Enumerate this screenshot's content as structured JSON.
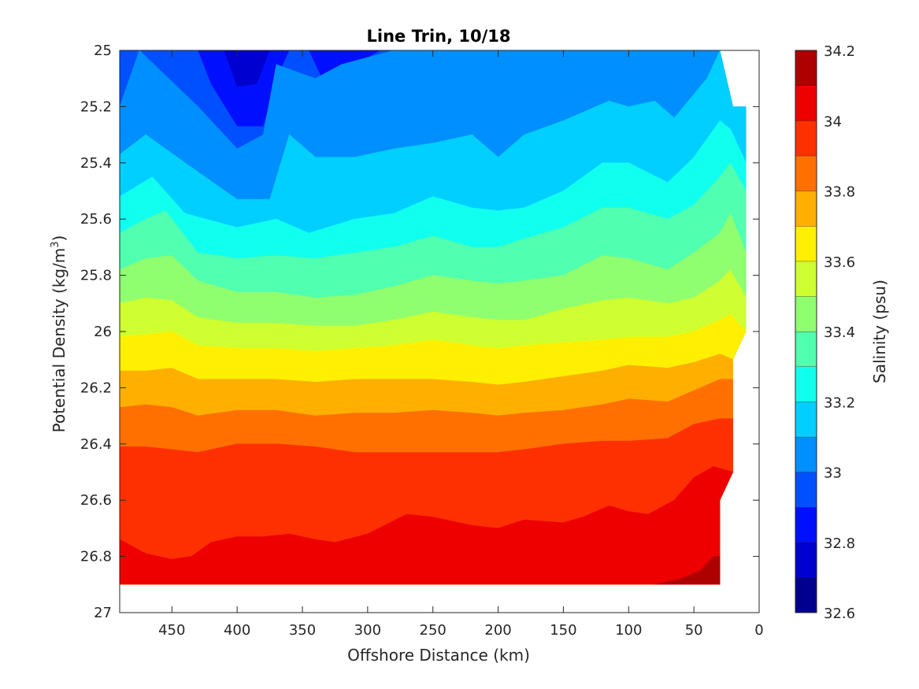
{
  "chart_data": {
    "type": "contourf",
    "title": "Line Trin, 10/18",
    "xlabel": "Offshore Distance (km)",
    "ylabel": "Potential Density (kg/m3)",
    "ylabel_parts": {
      "main": "Potential Density (kg/m",
      "sup": "3",
      "close": ")"
    },
    "colorbar_label": "Salinity (psu)",
    "x_reversed": true,
    "y_reversed": true,
    "xlim": [
      490,
      0
    ],
    "ylim": [
      25,
      27
    ],
    "data_extent": {
      "x": [
        490,
        10
      ],
      "y": [
        25,
        26.9
      ]
    },
    "xticks": [
      450,
      400,
      350,
      300,
      250,
      200,
      150,
      100,
      50,
      0
    ],
    "yticks": [
      25,
      25.2,
      25.4,
      25.6,
      25.8,
      26,
      26.2,
      26.4,
      26.6,
      26.8,
      27
    ],
    "ytick_labels": [
      "25",
      "25.2",
      "25.4",
      "25.6",
      "25.8",
      "26",
      "26.2",
      "26.4",
      "26.6",
      "26.8",
      "27"
    ],
    "colorbar": {
      "range": [
        32.6,
        34.2
      ],
      "levels": [
        32.6,
        32.7,
        32.8,
        32.9,
        33.0,
        33.1,
        33.2,
        33.3,
        33.4,
        33.5,
        33.6,
        33.7,
        33.8,
        33.9,
        34.0,
        34.1,
        34.2
      ],
      "ticks": [
        32.6,
        32.8,
        33,
        33.2,
        33.4,
        33.6,
        33.8,
        34,
        34.2
      ],
      "tick_labels": [
        "32.6",
        "32.8",
        "33",
        "33.2",
        "33.4",
        "33.6",
        "33.8",
        "34",
        "34.2"
      ],
      "colors": [
        "#00008f",
        "#0000cf",
        "#0010ff",
        "#0050ff",
        "#008fff",
        "#00cfff",
        "#10ffef",
        "#50ffaf",
        "#8fff70",
        "#cfff30",
        "#ffef00",
        "#ffaf00",
        "#ff7000",
        "#ff3000",
        "#ef0000",
        "#af0000"
      ]
    },
    "isolines": [
      {
        "level": 33.0,
        "points": [
          [
            490,
            25.2
          ],
          [
            475,
            25.0
          ],
          [
            430,
            25.2
          ],
          [
            400,
            25.35
          ],
          [
            380,
            25.3
          ],
          [
            370,
            25.05
          ],
          [
            340,
            25.1
          ],
          [
            320,
            25.05
          ],
          [
            280,
            25.0
          ],
          [
            30,
            25.0
          ]
        ]
      },
      {
        "level": 33.1,
        "points": [
          [
            490,
            25.37
          ],
          [
            470,
            25.3
          ],
          [
            440,
            25.4
          ],
          [
            400,
            25.53
          ],
          [
            375,
            25.53
          ],
          [
            360,
            25.3
          ],
          [
            340,
            25.38
          ],
          [
            310,
            25.38
          ],
          [
            280,
            25.35
          ],
          [
            250,
            25.33
          ],
          [
            220,
            25.3
          ],
          [
            200,
            25.38
          ],
          [
            180,
            25.3
          ],
          [
            150,
            25.25
          ],
          [
            135,
            25.22
          ],
          [
            115,
            25.18
          ],
          [
            100,
            25.2
          ],
          [
            80,
            25.18
          ],
          [
            65,
            25.24
          ],
          [
            40,
            25.1
          ],
          [
            30,
            25.0
          ],
          [
            25,
            25.1
          ],
          [
            17,
            25.2
          ]
        ]
      },
      {
        "level": 33.2,
        "points": [
          [
            490,
            25.52
          ],
          [
            465,
            25.45
          ],
          [
            440,
            25.58
          ],
          [
            400,
            25.63
          ],
          [
            370,
            25.6
          ],
          [
            345,
            25.65
          ],
          [
            310,
            25.6
          ],
          [
            280,
            25.58
          ],
          [
            250,
            25.52
          ],
          [
            220,
            25.56
          ],
          [
            200,
            25.57
          ],
          [
            180,
            25.56
          ],
          [
            150,
            25.5
          ],
          [
            120,
            25.4
          ],
          [
            100,
            25.4
          ],
          [
            70,
            25.47
          ],
          [
            50,
            25.38
          ],
          [
            30,
            25.25
          ],
          [
            22,
            25.28
          ],
          [
            10,
            25.4
          ]
        ]
      },
      {
        "level": 33.3,
        "points": [
          [
            490,
            25.65
          ],
          [
            470,
            25.6
          ],
          [
            455,
            25.57
          ],
          [
            430,
            25.72
          ],
          [
            400,
            25.74
          ],
          [
            370,
            25.73
          ],
          [
            340,
            25.74
          ],
          [
            310,
            25.72
          ],
          [
            280,
            25.7
          ],
          [
            250,
            25.66
          ],
          [
            220,
            25.7
          ],
          [
            200,
            25.7
          ],
          [
            180,
            25.67
          ],
          [
            150,
            25.63
          ],
          [
            120,
            25.56
          ],
          [
            100,
            25.56
          ],
          [
            70,
            25.6
          ],
          [
            50,
            25.55
          ],
          [
            30,
            25.45
          ],
          [
            22,
            25.4
          ],
          [
            10,
            25.5
          ]
        ]
      },
      {
        "level": 33.4,
        "points": [
          [
            490,
            25.78
          ],
          [
            470,
            25.74
          ],
          [
            450,
            25.73
          ],
          [
            430,
            25.82
          ],
          [
            400,
            25.86
          ],
          [
            370,
            25.86
          ],
          [
            340,
            25.88
          ],
          [
            310,
            25.87
          ],
          [
            280,
            25.84
          ],
          [
            250,
            25.8
          ],
          [
            220,
            25.82
          ],
          [
            200,
            25.83
          ],
          [
            180,
            25.82
          ],
          [
            150,
            25.8
          ],
          [
            120,
            25.73
          ],
          [
            100,
            25.74
          ],
          [
            70,
            25.78
          ],
          [
            50,
            25.72
          ],
          [
            30,
            25.65
          ],
          [
            22,
            25.58
          ],
          [
            10,
            25.72
          ]
        ]
      },
      {
        "level": 33.5,
        "points": [
          [
            490,
            25.9
          ],
          [
            470,
            25.88
          ],
          [
            450,
            25.89
          ],
          [
            430,
            25.95
          ],
          [
            400,
            25.97
          ],
          [
            370,
            25.97
          ],
          [
            340,
            25.98
          ],
          [
            310,
            25.98
          ],
          [
            280,
            25.96
          ],
          [
            250,
            25.93
          ],
          [
            220,
            25.95
          ],
          [
            200,
            25.96
          ],
          [
            180,
            25.96
          ],
          [
            150,
            25.92
          ],
          [
            120,
            25.89
          ],
          [
            100,
            25.88
          ],
          [
            70,
            25.9
          ],
          [
            50,
            25.88
          ],
          [
            30,
            25.82
          ],
          [
            22,
            25.78
          ],
          [
            10,
            25.88
          ]
        ]
      },
      {
        "level": 33.6,
        "points": [
          [
            490,
            26.02
          ],
          [
            470,
            26.01
          ],
          [
            450,
            26.0
          ],
          [
            430,
            26.05
          ],
          [
            400,
            26.06
          ],
          [
            370,
            26.06
          ],
          [
            340,
            26.07
          ],
          [
            310,
            26.06
          ],
          [
            280,
            26.05
          ],
          [
            250,
            26.03
          ],
          [
            220,
            26.05
          ],
          [
            200,
            26.06
          ],
          [
            180,
            26.05
          ],
          [
            150,
            26.04
          ],
          [
            120,
            26.03
          ],
          [
            100,
            26.02
          ],
          [
            70,
            26.02
          ],
          [
            50,
            26.0
          ],
          [
            30,
            25.96
          ],
          [
            22,
            25.94
          ],
          [
            10,
            26.0
          ]
        ]
      },
      {
        "level": 33.7,
        "points": [
          [
            490,
            26.14
          ],
          [
            470,
            26.14
          ],
          [
            450,
            26.13
          ],
          [
            430,
            26.17
          ],
          [
            400,
            26.17
          ],
          [
            370,
            26.17
          ],
          [
            340,
            26.18
          ],
          [
            310,
            26.17
          ],
          [
            280,
            26.17
          ],
          [
            250,
            26.17
          ],
          [
            220,
            26.18
          ],
          [
            200,
            26.19
          ],
          [
            180,
            26.18
          ],
          [
            150,
            26.16
          ],
          [
            120,
            26.14
          ],
          [
            100,
            26.12
          ],
          [
            70,
            26.13
          ],
          [
            50,
            26.11
          ],
          [
            30,
            26.08
          ],
          [
            20,
            26.1
          ]
        ]
      },
      {
        "level": 33.8,
        "points": [
          [
            490,
            26.27
          ],
          [
            470,
            26.26
          ],
          [
            450,
            26.27
          ],
          [
            430,
            26.3
          ],
          [
            400,
            26.28
          ],
          [
            370,
            26.28
          ],
          [
            340,
            26.3
          ],
          [
            310,
            26.29
          ],
          [
            280,
            26.29
          ],
          [
            250,
            26.28
          ],
          [
            220,
            26.29
          ],
          [
            200,
            26.3
          ],
          [
            180,
            26.29
          ],
          [
            150,
            26.28
          ],
          [
            120,
            26.26
          ],
          [
            100,
            26.24
          ],
          [
            70,
            26.25
          ],
          [
            50,
            26.21
          ],
          [
            30,
            26.17
          ],
          [
            20,
            26.17
          ]
        ]
      },
      {
        "level": 33.9,
        "points": [
          [
            490,
            26.41
          ],
          [
            470,
            26.41
          ],
          [
            450,
            26.42
          ],
          [
            430,
            26.43
          ],
          [
            400,
            26.4
          ],
          [
            370,
            26.4
          ],
          [
            340,
            26.41
          ],
          [
            310,
            26.43
          ],
          [
            280,
            26.43
          ],
          [
            250,
            26.43
          ],
          [
            220,
            26.43
          ],
          [
            200,
            26.43
          ],
          [
            180,
            26.42
          ],
          [
            150,
            26.4
          ],
          [
            120,
            26.39
          ],
          [
            100,
            26.39
          ],
          [
            70,
            26.38
          ],
          [
            50,
            26.33
          ],
          [
            30,
            26.31
          ],
          [
            20,
            26.31
          ]
        ]
      },
      {
        "level": 34.0,
        "points": [
          [
            490,
            26.74
          ],
          [
            470,
            26.79
          ],
          [
            450,
            26.81
          ],
          [
            435,
            26.8
          ],
          [
            420,
            26.75
          ],
          [
            400,
            26.73
          ],
          [
            380,
            26.73
          ],
          [
            360,
            26.72
          ],
          [
            340,
            26.74
          ],
          [
            325,
            26.75
          ],
          [
            300,
            26.72
          ],
          [
            270,
            26.65
          ],
          [
            250,
            26.66
          ],
          [
            220,
            26.69
          ],
          [
            200,
            26.7
          ],
          [
            180,
            26.67
          ],
          [
            150,
            26.68
          ],
          [
            135,
            26.66
          ],
          [
            115,
            26.62
          ],
          [
            100,
            26.64
          ],
          [
            85,
            26.65
          ],
          [
            65,
            26.6
          ],
          [
            50,
            26.52
          ],
          [
            35,
            26.48
          ],
          [
            20,
            26.5
          ]
        ]
      },
      {
        "level": 34.1,
        "points": [
          [
            80,
            26.9
          ],
          [
            60,
            26.88
          ],
          [
            45,
            26.85
          ],
          [
            35,
            26.8
          ],
          [
            30,
            26.8
          ]
        ]
      }
    ]
  }
}
